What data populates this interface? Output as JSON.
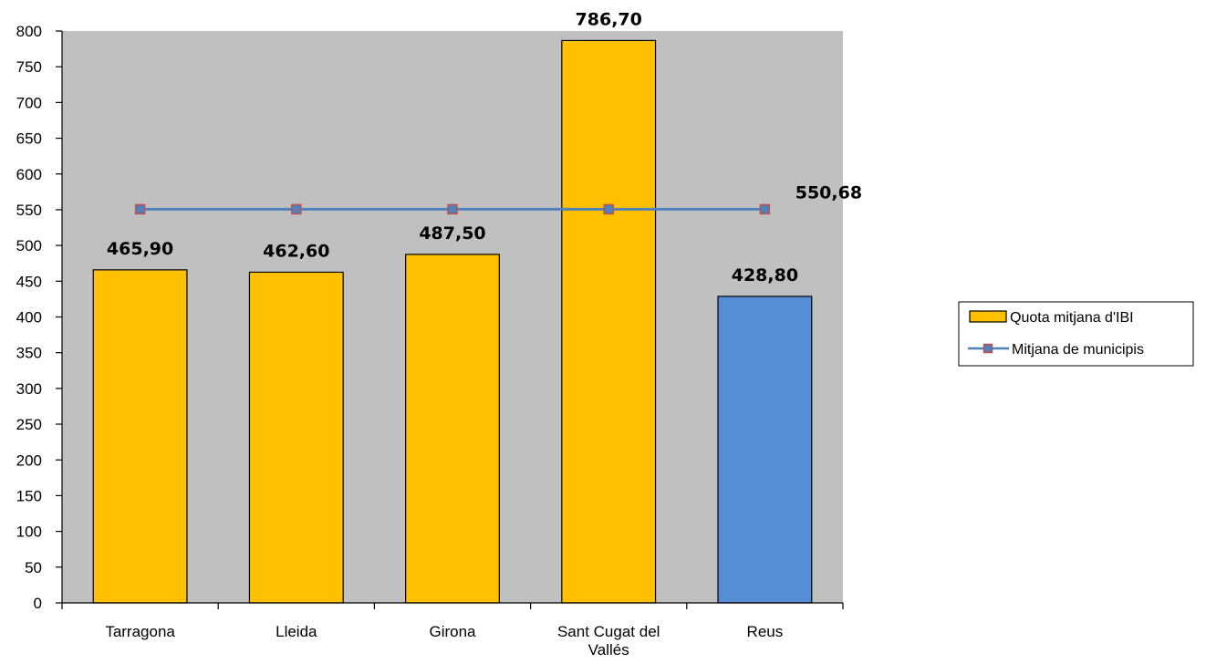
{
  "chart_data": {
    "type": "bar",
    "categories": [
      "Tarragona",
      "Lleida",
      "Girona",
      "Sant Cugat del Vallés",
      "Reus"
    ],
    "category_lines": [
      [
        "Tarragona"
      ],
      [
        "Lleida"
      ],
      [
        "Girona"
      ],
      [
        "Sant Cugat del",
        "Vallés"
      ],
      [
        "Reus"
      ]
    ],
    "series": [
      {
        "name": "Quota mitjana d'IBI",
        "kind": "bar",
        "values": [
          465.9,
          462.6,
          487.5,
          786.7,
          428.8
        ],
        "labels": [
          "465,90",
          "462,60",
          "487,50",
          "786,70",
          "428,80"
        ],
        "color": "#FFC000",
        "point_colors": [
          "#FFC000",
          "#FFC000",
          "#FFC000",
          "#FFC000",
          "#558ED5"
        ]
      },
      {
        "name": "Mitjana de municipis",
        "kind": "line",
        "values": [
          550.68,
          550.68,
          550.68,
          550.68,
          550.68
        ],
        "label": "550,68",
        "color": "#4F81BD",
        "marker_color": "#4F81BD",
        "marker_edge": "#C0504D"
      }
    ],
    "ylim": [
      0,
      800
    ],
    "yticks": [
      0,
      50,
      100,
      150,
      200,
      250,
      300,
      350,
      400,
      450,
      500,
      550,
      600,
      650,
      700,
      750,
      800
    ],
    "plot_background": "#C0C0C0",
    "grid": false,
    "legend": {
      "position": "right"
    },
    "title": "",
    "xlabel": "",
    "ylabel": ""
  }
}
